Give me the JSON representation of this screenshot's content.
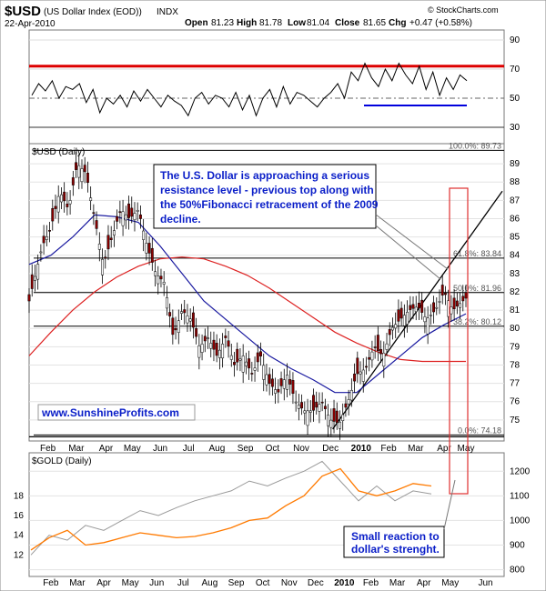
{
  "header": {
    "symbol": "$USD",
    "name": "(US Dollar Index (EOD))",
    "exchange": "INDX",
    "date": "22-Apr-2010",
    "open_label": "Open",
    "open": "81.23",
    "high_label": "High",
    "high": "81.78",
    "low_label": "Low",
    "low": "81.04",
    "close_label": "Close",
    "close": "81.65",
    "chg_label": "Chg",
    "chg": "+0.47 (+0.58%)",
    "brand": "© StockCharts.com"
  },
  "colors": {
    "usd_candles": "#8b0000",
    "ma50": "#1a1aa0",
    "ma200": "#dd2222",
    "resistance": "#dd0000",
    "support": "#0000dd",
    "gold": "#ff7a00",
    "usd_overlay": "#999999",
    "annotation": "#0a1ec8"
  },
  "chart_data": [
    {
      "type": "line",
      "name": "rsi-panel",
      "ylim": [
        20,
        95
      ],
      "yticks": [
        30,
        50,
        70,
        90
      ],
      "resistance_level": 72,
      "support_level": 45,
      "midline": 50,
      "series": [
        {
          "name": "",
          "x": [
            0,
            8,
            16,
            24,
            32,
            40,
            48,
            56,
            64,
            72,
            80,
            88,
            96,
            104,
            112,
            120,
            128,
            136,
            144,
            152,
            160,
            168,
            176,
            184,
            192,
            200,
            208,
            216,
            224,
            232,
            240,
            248,
            256,
            264,
            272,
            280,
            288,
            296,
            304,
            312,
            320,
            328,
            336,
            344,
            352,
            360,
            368,
            376,
            384,
            392,
            400,
            408,
            416,
            424,
            432,
            440,
            448,
            456,
            464,
            472,
            480,
            488,
            496,
            504,
            512
          ],
          "y": [
            52,
            60,
            55,
            62,
            50,
            58,
            56,
            60,
            47,
            56,
            40,
            50,
            46,
            52,
            44,
            55,
            48,
            56,
            50,
            44,
            52,
            48,
            45,
            38,
            50,
            54,
            46,
            52,
            50,
            44,
            54,
            42,
            52,
            38,
            50,
            56,
            44,
            58,
            46,
            54,
            52,
            48,
            44,
            50,
            54,
            60,
            50,
            68,
            62,
            74,
            64,
            58,
            70,
            62,
            74,
            66,
            60,
            72,
            56,
            68,
            52,
            64,
            56,
            66,
            62
          ]
        }
      ]
    },
    {
      "type": "line",
      "name": "usd-daily-panel",
      "title": "$USD (Daily)",
      "ylim": [
        74,
        89.5
      ],
      "yticks": [
        75,
        76,
        77,
        78,
        79,
        80,
        81,
        82,
        83,
        84,
        85,
        86,
        87,
        88,
        89
      ],
      "fibonacci": [
        {
          "label": "100.0%: 89.73",
          "value": 89.73
        },
        {
          "label": "61.8%: 83.84",
          "value": 83.84
        },
        {
          "label": "50.0%: 81.96",
          "value": 81.96
        },
        {
          "label": "38.2%: 80.12",
          "value": 80.12
        },
        {
          "label": "0.0%: 74.18",
          "value": 74.18
        }
      ],
      "x_labels": [
        "Feb",
        "Mar",
        "Apr",
        "May",
        "Jun",
        "Jul",
        "Aug",
        "Sep",
        "Oct",
        "Nov",
        "Dec",
        "2010",
        "Feb",
        "Mar",
        "Apr",
        "May"
      ],
      "series": [
        {
          "name": "",
          "x": [
            0,
            0.03,
            0.05,
            0.07,
            0.09,
            0.11,
            0.13,
            0.15,
            0.17,
            0.19,
            0.21,
            0.23,
            0.25,
            0.27,
            0.29,
            0.31,
            0.33,
            0.35,
            0.37,
            0.39,
            0.41,
            0.43,
            0.45,
            0.47,
            0.49,
            0.51,
            0.53,
            0.55,
            0.57,
            0.59,
            0.61,
            0.63,
            0.65,
            0.67,
            0.69,
            0.71,
            0.73,
            0.75,
            0.77,
            0.79,
            0.81,
            0.83,
            0.85,
            0.87,
            0.89,
            0.91,
            0.93,
            0.95,
            0.97,
            1.0
          ],
          "y": [
            81.5,
            84.5,
            85.5,
            87.5,
            86.5,
            89,
            88.5,
            86,
            83.5,
            85,
            86.5,
            86,
            86.5,
            84.5,
            83,
            82.5,
            79.5,
            81,
            80.5,
            79,
            79.5,
            78.5,
            79.5,
            78,
            78.5,
            77.5,
            78.5,
            77,
            76.5,
            77.5,
            76,
            75.5,
            75.5,
            76,
            75,
            74.8,
            76,
            77.5,
            77.8,
            79,
            78.5,
            80,
            80.5,
            81,
            81.2,
            80.5,
            81,
            82,
            81,
            81.65
          ]
        },
        {
          "name": "",
          "x": [
            0,
            0.05,
            0.1,
            0.15,
            0.2,
            0.25,
            0.3,
            0.35,
            0.4,
            0.45,
            0.5,
            0.55,
            0.6,
            0.65,
            0.7,
            0.75,
            0.8,
            0.85,
            0.9,
            0.95,
            1.0
          ],
          "y": [
            83.5,
            84,
            85,
            86.2,
            86.1,
            85.8,
            84.5,
            83,
            81.5,
            80.5,
            79.5,
            78.5,
            77.8,
            77.2,
            76.5,
            76.5,
            77.5,
            78.5,
            79.5,
            80.2,
            80.8
          ]
        },
        {
          "name": "",
          "x": [
            0,
            0.05,
            0.1,
            0.15,
            0.2,
            0.25,
            0.3,
            0.35,
            0.4,
            0.45,
            0.5,
            0.55,
            0.6,
            0.65,
            0.7,
            0.75,
            0.8,
            0.85,
            0.9,
            0.95,
            1.0
          ],
          "y": [
            78.5,
            79.8,
            81,
            82,
            82.8,
            83.4,
            83.8,
            83.9,
            83.8,
            83.4,
            82.9,
            82.2,
            81.4,
            80.6,
            79.8,
            79.2,
            78.7,
            78.3,
            78.2,
            78.2,
            78.2
          ]
        }
      ]
    },
    {
      "type": "line",
      "name": "gold-panel",
      "title": "$GOLD (Daily)",
      "ylim_left": [
        10,
        22
      ],
      "yticks_left": [
        12,
        14,
        16,
        18
      ],
      "ylim_right": [
        780,
        1260
      ],
      "yticks_right": [
        800,
        900,
        1000,
        1100,
        1200
      ],
      "x_labels": [
        "Feb",
        "Mar",
        "Apr",
        "May",
        "Jun",
        "Jul",
        "Aug",
        "Sep",
        "Oct",
        "Nov",
        "Dec",
        "2010",
        "Feb",
        "Mar",
        "Apr",
        "May",
        "Jun"
      ],
      "series": [
        {
          "name": "",
          "x": [
            0,
            0.04,
            0.08,
            0.12,
            0.16,
            0.2,
            0.24,
            0.28,
            0.32,
            0.36,
            0.4,
            0.44,
            0.48,
            0.52,
            0.56,
            0.6,
            0.64,
            0.68,
            0.72,
            0.76,
            0.8,
            0.84,
            0.88
          ],
          "y": [
            880,
            930,
            960,
            900,
            910,
            930,
            950,
            940,
            930,
            935,
            950,
            970,
            1000,
            1010,
            1060,
            1100,
            1180,
            1210,
            1120,
            1100,
            1120,
            1150,
            1140
          ]
        },
        {
          "name": "",
          "x": [
            0,
            0.04,
            0.08,
            0.12,
            0.16,
            0.2,
            0.24,
            0.28,
            0.32,
            0.36,
            0.4,
            0.44,
            0.48,
            0.52,
            0.56,
            0.6,
            0.64,
            0.68,
            0.72,
            0.76,
            0.8,
            0.84,
            0.88
          ],
          "y": [
            12,
            14,
            13.5,
            15,
            14.5,
            15.5,
            16.5,
            16,
            16.8,
            17.5,
            18,
            18.5,
            19.5,
            19,
            19.8,
            20.5,
            21.5,
            19.5,
            17.5,
            19,
            17.5,
            18.5,
            18.2
          ]
        }
      ]
    }
  ],
  "annotations": {
    "resistance_note": [
      "The U.S. Dollar is approaching a serious",
      "resistance level - previous top along with",
      "the 50%Fibonacci retracement of the 2009",
      "decline."
    ],
    "website": "www.SunshineProfits.com",
    "small_reaction": [
      "Small reaction to",
      "dollar's strenght."
    ]
  }
}
